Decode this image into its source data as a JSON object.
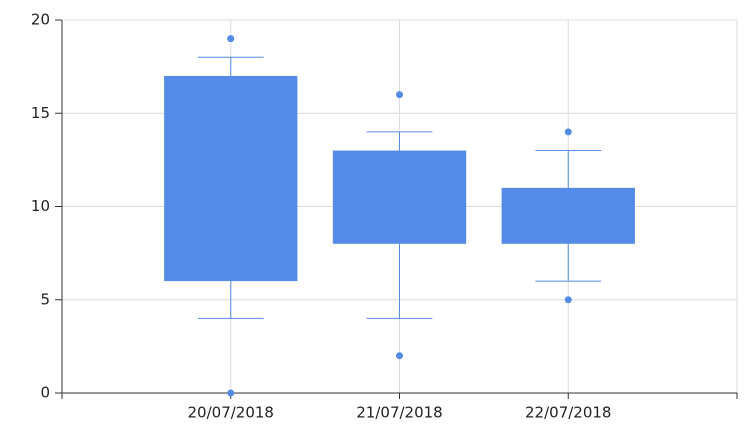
{
  "chart_data": {
    "type": "box",
    "categories": [
      "20/07/2018",
      "21/07/2018",
      "22/07/2018"
    ],
    "color": "#548be6",
    "boxes": [
      {
        "low": 4,
        "q1": 6,
        "q3": 17,
        "high": 18,
        "outliers": [
          19,
          0
        ]
      },
      {
        "low": 4,
        "q1": 8,
        "q3": 13,
        "high": 14,
        "outliers": [
          16,
          2
        ]
      },
      {
        "low": 6,
        "q1": 8,
        "q3": 11,
        "high": 13,
        "outliers": [
          14,
          5
        ]
      }
    ],
    "ylim": [
      0,
      20
    ],
    "yticks": [
      0,
      5,
      10,
      15,
      20
    ],
    "grid": true
  }
}
